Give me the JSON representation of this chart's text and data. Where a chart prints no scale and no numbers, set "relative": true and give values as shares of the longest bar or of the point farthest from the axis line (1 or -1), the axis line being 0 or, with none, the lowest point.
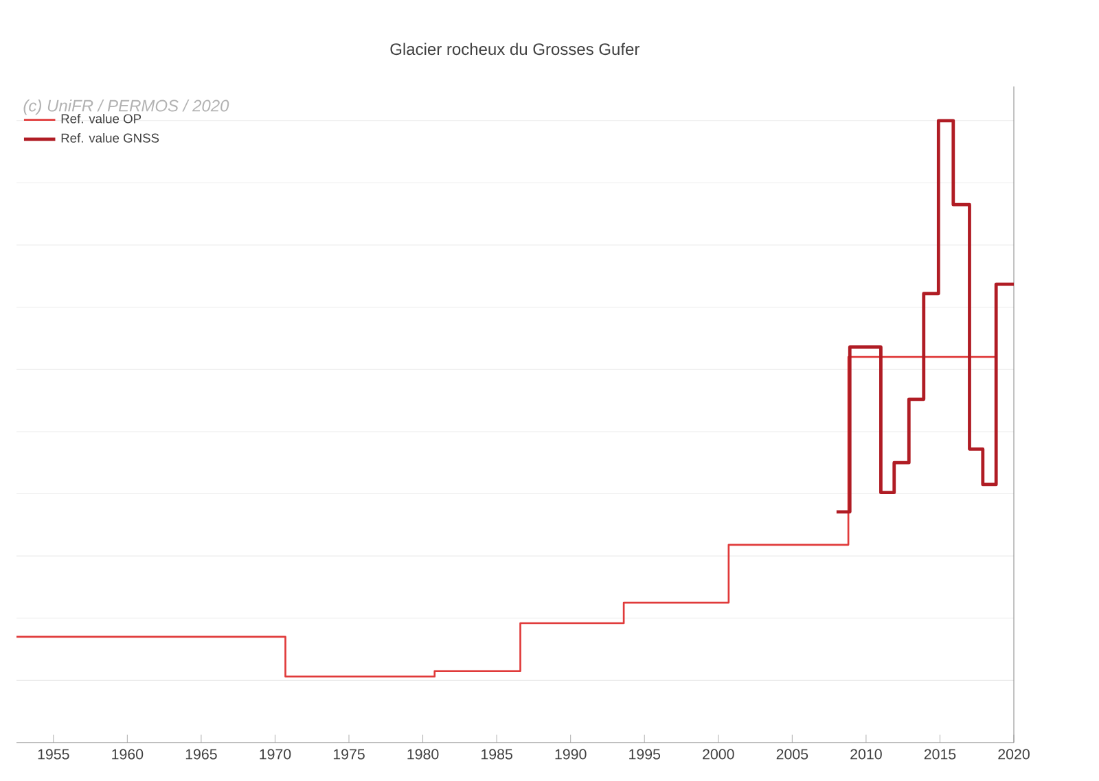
{
  "chart_data": {
    "type": "step",
    "title": "Glacier rocheux du Grosses Gufer",
    "relative": true,
    "annotations": [
      "(c) UniFR / PERMOS / 2020"
    ],
    "xlim": [
      1952.5,
      2020
    ],
    "xticks": [
      1955,
      1960,
      1965,
      1970,
      1975,
      1980,
      1985,
      1990,
      1995,
      2000,
      2005,
      2010,
      2015,
      2020
    ],
    "grid": "y",
    "legend": "top left",
    "series": [
      {
        "name": "Ref. value OP",
        "color": "#e03a3a",
        "x": [
          1952.5,
          1970.7,
          1980.8,
          1986.6,
          1993.6,
          2000.7,
          2008.8,
          2018.8
        ],
        "values": [
          0.17,
          0.106,
          0.115,
          0.192,
          0.225,
          0.318,
          0.62,
          0.62
        ]
      },
      {
        "name": "Ref. value GNSS",
        "color": "#b01c24",
        "x": [
          2008.0,
          2008.9,
          2011.0,
          2011.9,
          2012.9,
          2013.9,
          2014.9,
          2015.9,
          2017.0,
          2017.9,
          2018.8,
          2020.0
        ],
        "values": [
          0.371,
          0.636,
          0.402,
          0.45,
          0.552,
          0.722,
          1.0,
          0.865,
          0.472,
          0.415,
          0.737,
          0.737
        ]
      }
    ]
  }
}
